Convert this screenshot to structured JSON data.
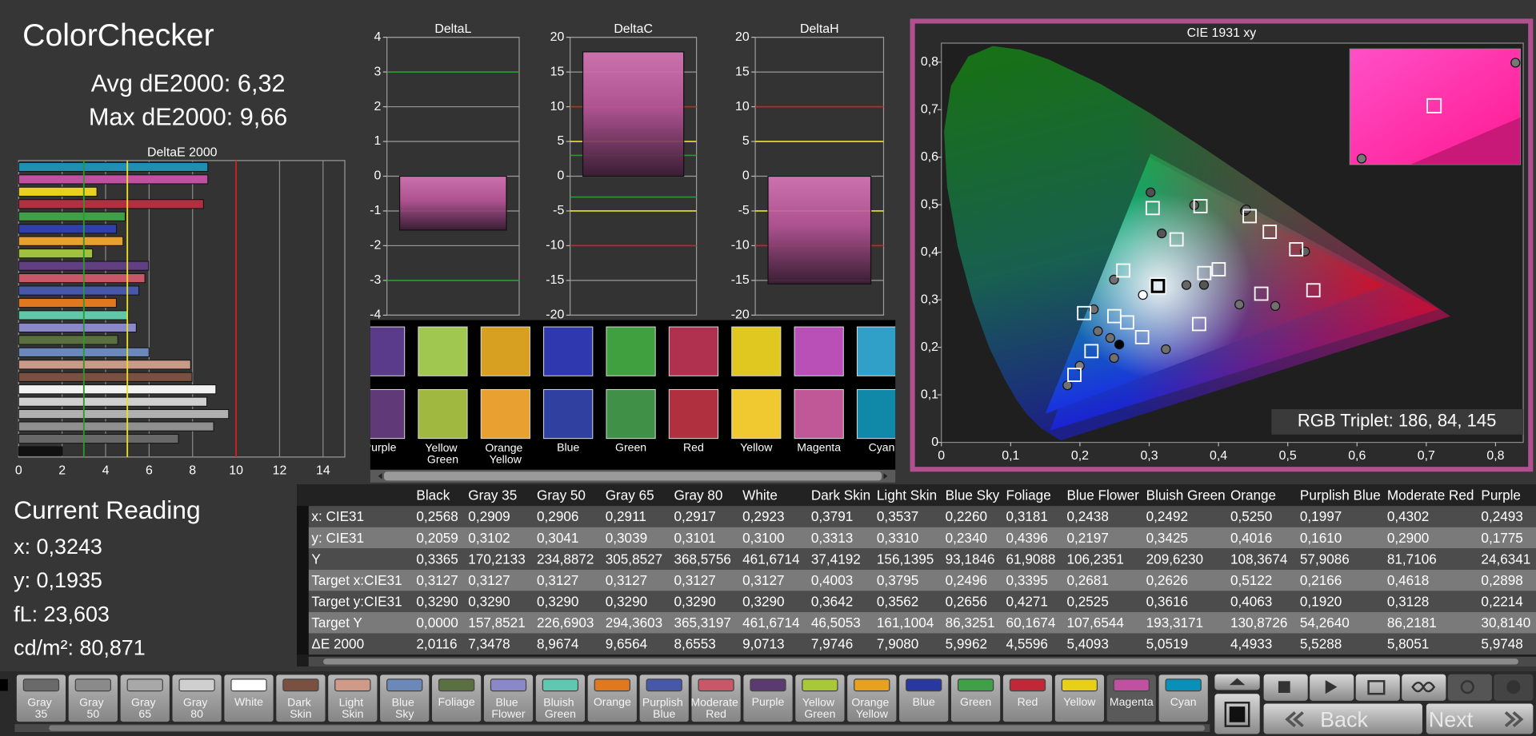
{
  "header": {
    "title": "ColorChecker",
    "avg": "Avg dE2000: 6,32",
    "max": "Max dE2000: 9,66"
  },
  "chart_data": [
    {
      "type": "bar",
      "orientation": "horizontal",
      "title": "DeltaE 2000",
      "values": [
        8.7,
        8.7,
        3.6,
        8.5,
        4.9,
        4.5,
        4.8,
        3.4,
        5.9748,
        5.8051,
        5.5288,
        4.4933,
        5.0519,
        5.4093,
        4.5596,
        5.9962,
        7.908,
        7.9746,
        9.0713,
        8.6553,
        9.6564,
        8.9674,
        7.3478,
        2.0116
      ],
      "colors": [
        "#1f8fb4",
        "#c050a0",
        "#e8d020",
        "#b03040",
        "#40a048",
        "#3040a8",
        "#e8a030",
        "#a0c040",
        "#604080",
        "#c85868",
        "#4858a8",
        "#e07820",
        "#60c8a8",
        "#8a88c8",
        "#5a7040",
        "#6a88b8",
        "#c89a88",
        "#7a5040",
        "#f2f2f2",
        "#d0d0d0",
        "#b0b0b0",
        "#909090",
        "#686868",
        "#111111"
      ],
      "xlim": [
        0,
        15
      ],
      "xticks": [
        0,
        2,
        4,
        6,
        8,
        10,
        12,
        14
      ],
      "reference_lines": [
        {
          "value": 3,
          "color": "#2a9a2a"
        },
        {
          "value": 5,
          "color": "#e8e020"
        },
        {
          "value": 10,
          "color": "#d02020"
        }
      ]
    },
    {
      "type": "bar",
      "title": "DeltaL",
      "values": [
        -1.55
      ],
      "ylim": [
        -4,
        4
      ],
      "yticks": [
        -4,
        -3,
        -2,
        -1,
        0,
        1,
        2,
        3,
        4
      ],
      "reference_lines": [
        {
          "value": 3,
          "color": "#2a9a2a"
        },
        {
          "value": -3,
          "color": "#2a9a2a"
        }
      ]
    },
    {
      "type": "bar",
      "title": "DeltaC",
      "values": [
        17.9
      ],
      "ylim": [
        -20,
        20
      ],
      "yticks": [
        -20,
        -15,
        -10,
        -5,
        0,
        5,
        10,
        15,
        20
      ],
      "reference_lines": [
        {
          "value": 3,
          "color": "#2a9a2a"
        },
        {
          "value": -3,
          "color": "#2a9a2a"
        },
        {
          "value": 5,
          "color": "#e8e020"
        },
        {
          "value": -5,
          "color": "#e8e020"
        },
        {
          "value": 10,
          "color": "#d02020"
        },
        {
          "value": -10,
          "color": "#d02020"
        }
      ]
    },
    {
      "type": "bar",
      "title": "DeltaH",
      "values": [
        -15.5
      ],
      "ylim": [
        -20,
        20
      ],
      "yticks": [
        -20,
        -15,
        -10,
        -5,
        0,
        5,
        10,
        15,
        20
      ],
      "reference_lines": [
        {
          "value": 5,
          "color": "#e8e020"
        },
        {
          "value": -5,
          "color": "#e8e020"
        },
        {
          "value": 10,
          "color": "#d02020"
        },
        {
          "value": -10,
          "color": "#d02020"
        }
      ]
    },
    {
      "type": "scatter",
      "title": "CIE 1931 xy",
      "xlim": [
        0,
        0.84
      ],
      "ylim": [
        0,
        0.84
      ],
      "xticks": [
        0,
        {
          "value": 0.1,
          "label": "0,1"
        },
        {
          "value": 0.2,
          "label": "0,2"
        },
        {
          "value": 0.3,
          "label": "0,3"
        },
        {
          "value": 0.4,
          "label": "0,4"
        },
        {
          "value": 0.5,
          "label": "0,5"
        },
        {
          "value": 0.6,
          "label": "0,6"
        },
        {
          "value": 0.7,
          "label": "0,7"
        },
        {
          "value": 0.8,
          "label": "0,8"
        }
      ],
      "yticks": [
        0,
        {
          "value": 0.1,
          "label": "0,1"
        },
        {
          "value": 0.2,
          "label": "0,2"
        },
        {
          "value": 0.3,
          "label": "0,3"
        },
        {
          "value": 0.4,
          "label": "0,4"
        },
        {
          "value": 0.5,
          "label": "0,5"
        },
        {
          "value": 0.6,
          "label": "0,6"
        },
        {
          "value": 0.7,
          "label": "0,7"
        },
        {
          "value": 0.8,
          "label": "0,8"
        }
      ],
      "target_gamut": {
        "x": [
          0.64,
          0.3,
          0.15
        ],
        "y": [
          0.33,
          0.6,
          0.06
        ]
      },
      "measured_gamut": {
        "x": [
          0.718,
          0.302,
          0.157
        ],
        "y": [
          0.28,
          0.608,
          0.025
        ]
      },
      "targets": {
        "x": [
          0.3127,
          0.4003,
          0.3795,
          0.2496,
          0.3395,
          0.2681,
          0.2626,
          0.5122,
          0.2166,
          0.4618,
          0.2898,
          0.374,
          0.474,
          0.192,
          0.305,
          0.537,
          0.445,
          0.372,
          0.206
        ],
        "y": [
          0.329,
          0.3642,
          0.3562,
          0.2656,
          0.4271,
          0.2525,
          0.3616,
          0.4063,
          0.192,
          0.3128,
          0.2214,
          0.497,
          0.443,
          0.142,
          0.493,
          0.32,
          0.476,
          0.249,
          0.272
        ]
      },
      "measured": {
        "x": [
          0.2568,
          0.2909,
          0.3791,
          0.3537,
          0.226,
          0.3181,
          0.2438,
          0.2492,
          0.525,
          0.1997,
          0.4302,
          0.2493,
          0.365,
          0.438,
          0.182,
          0.302,
          0.482,
          0.44,
          0.324,
          0.22
        ],
        "y": [
          0.2059,
          0.3102,
          0.3313,
          0.331,
          0.234,
          0.4396,
          0.2197,
          0.3425,
          0.4016,
          0.161,
          0.29,
          0.1775,
          0.499,
          0.487,
          0.12,
          0.526,
          0.287,
          0.49,
          0.196,
          0.28
        ],
        "colors": [
          "#000000",
          "#ffffff",
          "#555555",
          "#666666",
          "#707070",
          "#555555",
          "#707070",
          "#707070",
          "#606060",
          "#808080",
          "#707070",
          "#707070",
          "#606060",
          "#606060",
          "#707070",
          "#505050",
          "#707070",
          "#606060",
          "#707070",
          "#707070"
        ]
      },
      "annotation": "RGB Triplet: 186, 84, 145",
      "border_color": "#b0508f"
    }
  ],
  "swatches": {
    "top_colors": [
      "#5a3a8a",
      "#a0c850",
      "#d8a020",
      "#3038b0",
      "#40a040",
      "#b03050",
      "#e0c820",
      "#b850b8",
      "#30a0c8"
    ],
    "bottom_colors": [
      "#603a78",
      "#a0b840",
      "#e8a030",
      "#3040a0",
      "#409048",
      "#b03040",
      "#f0c830",
      "#c05898",
      "#1088a8"
    ],
    "labels": [
      "Purple",
      "Yellow Green",
      "Orange Yellow",
      "Blue",
      "Green",
      "Red",
      "Yellow",
      "Magenta",
      "Cyan"
    ]
  },
  "table": {
    "columns": [
      "Black",
      "Gray 35",
      "Gray 50",
      "Gray 65",
      "Gray 80",
      "White",
      "Dark Skin",
      "Light Skin",
      "Blue Sky",
      "Foliage",
      "Blue Flower",
      "Bluish Green",
      "Orange",
      "Purplish Blue",
      "Moderate Red",
      "Purple"
    ],
    "rows": [
      {
        "label": "x: CIE31",
        "values": [
          "0,2568",
          "0,2909",
          "0,2906",
          "0,2911",
          "0,2917",
          "0,2923",
          "0,3791",
          "0,3537",
          "0,2260",
          "0,3181",
          "0,2438",
          "0,2492",
          "0,5250",
          "0,1997",
          "0,4302",
          "0,2493"
        ]
      },
      {
        "label": "y: CIE31",
        "values": [
          "0,2059",
          "0,3102",
          "0,3041",
          "0,3039",
          "0,3101",
          "0,3100",
          "0,3313",
          "0,3310",
          "0,2340",
          "0,4396",
          "0,2197",
          "0,3425",
          "0,4016",
          "0,1610",
          "0,2900",
          "0,1775"
        ]
      },
      {
        "label": "Y",
        "values": [
          "0,3365",
          "170,2133",
          "234,8872",
          "305,8527",
          "368,5756",
          "461,6714",
          "37,4192",
          "156,1395",
          "93,1846",
          "61,9088",
          "106,2351",
          "209,6230",
          "108,3674",
          "57,9086",
          "81,7106",
          "24,6341"
        ]
      },
      {
        "label": "Target x:CIE31",
        "values": [
          "0,3127",
          "0,3127",
          "0,3127",
          "0,3127",
          "0,3127",
          "0,3127",
          "0,4003",
          "0,3795",
          "0,2496",
          "0,3395",
          "0,2681",
          "0,2626",
          "0,5122",
          "0,2166",
          "0,4618",
          "0,2898"
        ]
      },
      {
        "label": "Target y:CIE31",
        "values": [
          "0,3290",
          "0,3290",
          "0,3290",
          "0,3290",
          "0,3290",
          "0,3290",
          "0,3642",
          "0,3562",
          "0,2656",
          "0,4271",
          "0,2525",
          "0,3616",
          "0,4063",
          "0,1920",
          "0,3128",
          "0,2214"
        ]
      },
      {
        "label": "Target Y",
        "values": [
          "0,0000",
          "157,8521",
          "226,6903",
          "294,3603",
          "365,3197",
          "461,6714",
          "46,5053",
          "161,1004",
          "86,3251",
          "60,1674",
          "107,6544",
          "193,3171",
          "130,8726",
          "54,2640",
          "86,2181",
          "30,8140"
        ]
      },
      {
        "label": "ΔE 2000",
        "values": [
          "2,0116",
          "7,3478",
          "8,9674",
          "9,6564",
          "8,6553",
          "9,0713",
          "7,9746",
          "7,9080",
          "5,9962",
          "4,5596",
          "5,4093",
          "5,0519",
          "4,4933",
          "5,5288",
          "5,8051",
          "5,9748"
        ]
      }
    ]
  },
  "current_reading": {
    "title": "Current Reading",
    "lines": [
      "x: 0,3243",
      "y: 0,1935",
      "fL: 23,603",
      "cd/m²: 80,871"
    ]
  },
  "toolbar": {
    "selected_tab": 21,
    "tabs": [
      {
        "label": "Gray 35",
        "color": "#6a6a6a"
      },
      {
        "label": "Gray 50",
        "color": "#8a8a8a"
      },
      {
        "label": "Gray 65",
        "color": "#a8a8a8"
      },
      {
        "label": "Gray 80",
        "color": "#cfcfcf"
      },
      {
        "label": "White",
        "color": "#ffffff"
      },
      {
        "label": "Dark Skin",
        "color": "#7a5040"
      },
      {
        "label": "Light Skin",
        "color": "#d09a88"
      },
      {
        "label": "Blue Sky",
        "color": "#6a88b8"
      },
      {
        "label": "Foliage",
        "color": "#5a7040"
      },
      {
        "label": "Blue Flower",
        "color": "#8a88c8"
      },
      {
        "label": "Bluish Green",
        "color": "#60c8b0"
      },
      {
        "label": "Orange",
        "color": "#e07820"
      },
      {
        "label": "Purplish Blue",
        "color": "#4858a8"
      },
      {
        "label": "Moderate Red",
        "color": "#c85868"
      },
      {
        "label": "Purple",
        "color": "#5a3a70"
      },
      {
        "label": "Yellow Green",
        "color": "#a8c838"
      },
      {
        "label": "Orange Yellow",
        "color": "#e8a020"
      },
      {
        "label": "Blue",
        "color": "#2838a0"
      },
      {
        "label": "Green",
        "color": "#40a048"
      },
      {
        "label": "Red",
        "color": "#c02838"
      },
      {
        "label": "Yellow",
        "color": "#e8d018"
      },
      {
        "label": "Magenta",
        "color": "#c050a0"
      },
      {
        "label": "Cyan",
        "color": "#0890b8"
      }
    ],
    "back": "Back",
    "next": "Next"
  }
}
